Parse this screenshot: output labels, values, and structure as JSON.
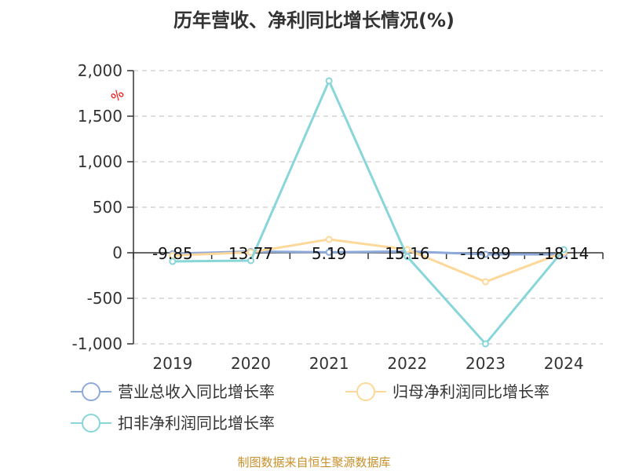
{
  "chart_data": {
    "type": "line",
    "title": "历年营收、净利同比增长情况(%)",
    "ylabel": "%",
    "categories": [
      "2019",
      "2020",
      "2021",
      "2022",
      "2023",
      "2024"
    ],
    "ylim": [
      -1000,
      2000
    ],
    "yticks": [
      2000,
      1500,
      1000,
      500,
      0,
      -500,
      -1000
    ],
    "ytick_labels": [
      "2,000",
      "1,500",
      "1,000",
      "500",
      "0",
      "-500",
      "-1,000"
    ],
    "grid": true,
    "legend_position": "bottom",
    "series": [
      {
        "name": "营业总收入同比增长率",
        "color": "#8eaadb",
        "values": [
          -9.85,
          13.77,
          5.19,
          15.16,
          -16.89,
          -18.14
        ],
        "data_labels": [
          "-9.85",
          "13.77",
          "5.19",
          "15.16",
          "-16.89",
          "-18.14"
        ]
      },
      {
        "name": "归母净利润同比增长率",
        "color": "#fdd89a",
        "values": [
          -30,
          5,
          147,
          35,
          -319,
          5
        ]
      },
      {
        "name": "扣非净利润同比增长率",
        "color": "#88d6da",
        "values": [
          -95,
          -86,
          1888,
          -43,
          -1000,
          35
        ]
      }
    ]
  },
  "source": "制图数据来自恒生聚源数据库"
}
